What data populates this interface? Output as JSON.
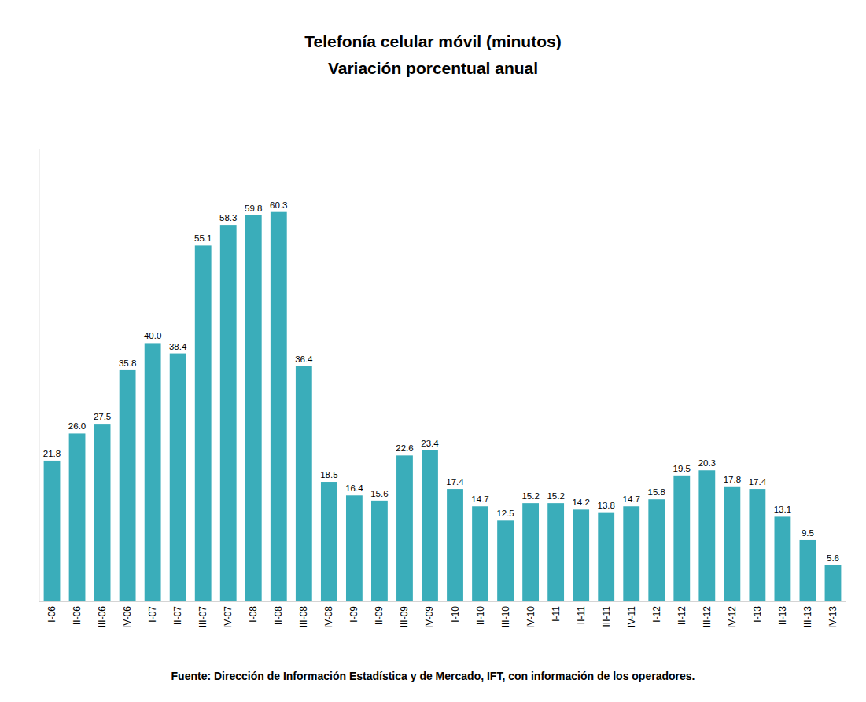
{
  "chart_data": {
    "type": "bar",
    "title": "Telefonía celular móvil (minutos)",
    "subtitle": "Variación porcentual anual",
    "annotations": [
      "Fuente: Dirección de Información Estadística y de Mercado, IFT, con información de los operadores."
    ],
    "categories": [
      "I-06",
      "II-06",
      "III-06",
      "IV-06",
      "I-07",
      "II-07",
      "III-07",
      "IV-07",
      "I-08",
      "II-08",
      "III-08",
      "IV-08",
      "I-09",
      "II-09",
      "III-09",
      "IV-09",
      "I-10",
      "II-10",
      "III-10",
      "IV-10",
      "I-11",
      "II-11",
      "III-11",
      "IV-11",
      "I-12",
      "II-12",
      "III-12",
      "IV-12",
      "I-13",
      "II-13",
      "III-13",
      "IV-13"
    ],
    "values": [
      21.8,
      26.0,
      27.5,
      35.8,
      40.0,
      38.4,
      55.1,
      58.3,
      59.8,
      60.3,
      36.4,
      18.5,
      16.4,
      15.6,
      22.6,
      23.4,
      17.4,
      14.7,
      12.5,
      15.2,
      15.2,
      14.2,
      13.8,
      14.7,
      15.8,
      19.5,
      20.3,
      17.8,
      17.4,
      13.1,
      9.5,
      5.6
    ],
    "value_labels": [
      "21.8",
      "26.0",
      "27.5",
      "35.8",
      "40.0",
      "38.4",
      "55.1",
      "58.3",
      "59.8",
      "60.3",
      "36.4",
      "18.5",
      "16.4",
      "15.6",
      "22.6",
      "23.4",
      "17.4",
      "14.7",
      "12.5",
      "15.2",
      "15.2",
      "14.2",
      "13.8",
      "14.7",
      "15.8",
      "19.5",
      "20.3",
      "17.8",
      "17.4",
      "13.1",
      "9.5",
      "5.6"
    ],
    "color": "#3AADBA",
    "ylim": [
      0,
      70
    ],
    "grid": false,
    "data_labels": true,
    "tick_labels": "x"
  }
}
